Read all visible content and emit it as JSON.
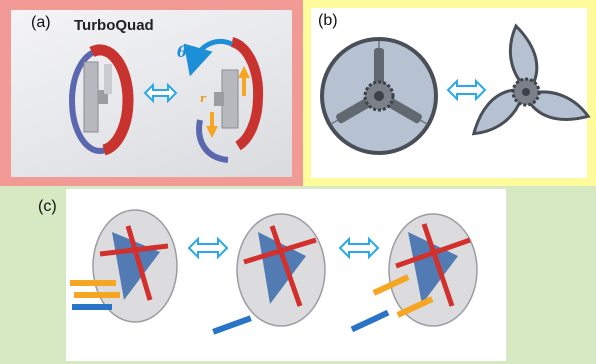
{
  "panels": {
    "a": {
      "label": "(a)",
      "title": "TurboQuad",
      "theta": "θ",
      "r": "r"
    },
    "b": {
      "label": "(b)"
    },
    "c": {
      "label": "(c)"
    }
  },
  "colors": {
    "panel_a_border": "#f29a96",
    "panel_b_border": "#fdfb9c",
    "panel_c_background": "#d7e9c2",
    "arrow": "#2aa9e6",
    "rim_red": "#c8322f",
    "rim_blue": "#5b68b0",
    "actuator_orange": "#f6a623",
    "actuator_blue": "#2a74c8"
  },
  "icons": [
    "double-arrow-icon",
    "rotation-arrow-icon",
    "radial-arrow-icon"
  ]
}
